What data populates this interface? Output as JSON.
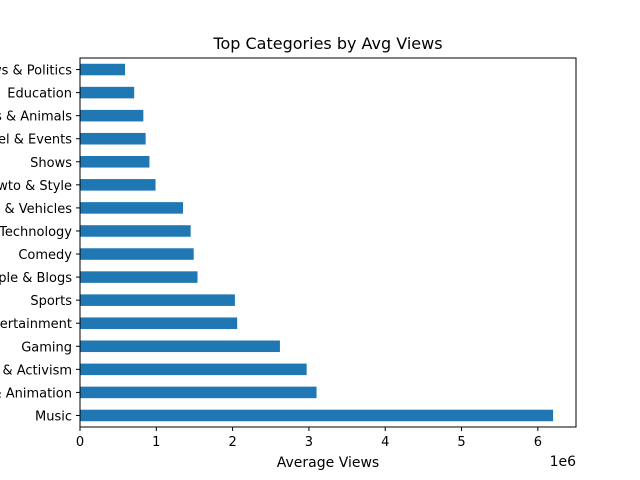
{
  "chart_data": {
    "type": "bar",
    "orientation": "horizontal",
    "title": "Top Categories by Avg Views",
    "xlabel": "Average Views",
    "ylabel": "",
    "x_offset_label": "1e6",
    "x_scale_factor": 1000000,
    "xlim": [
      0,
      6500000
    ],
    "xticks": [
      0,
      1000000,
      2000000,
      3000000,
      4000000,
      5000000,
      6000000
    ],
    "xtick_labels": [
      "0",
      "1",
      "2",
      "3",
      "4",
      "5",
      "6"
    ],
    "grid": false,
    "bar_color": "#1f77b4",
    "categories": [
      "Music",
      "Film & Animation",
      "Nonprofits & Activism",
      "Gaming",
      "Entertainment",
      "Sports",
      "People & Blogs",
      "Comedy",
      "Science & Technology",
      "Autos & Vehicles",
      "Howto & Style",
      "Shows",
      "Travel & Events",
      "Pets & Animals",
      "Education",
      "News & Politics"
    ],
    "values": [
      6200000,
      3100000,
      2970000,
      2620000,
      2060000,
      2030000,
      1540000,
      1490000,
      1450000,
      1350000,
      990000,
      910000,
      860000,
      830000,
      710000,
      590000
    ]
  }
}
